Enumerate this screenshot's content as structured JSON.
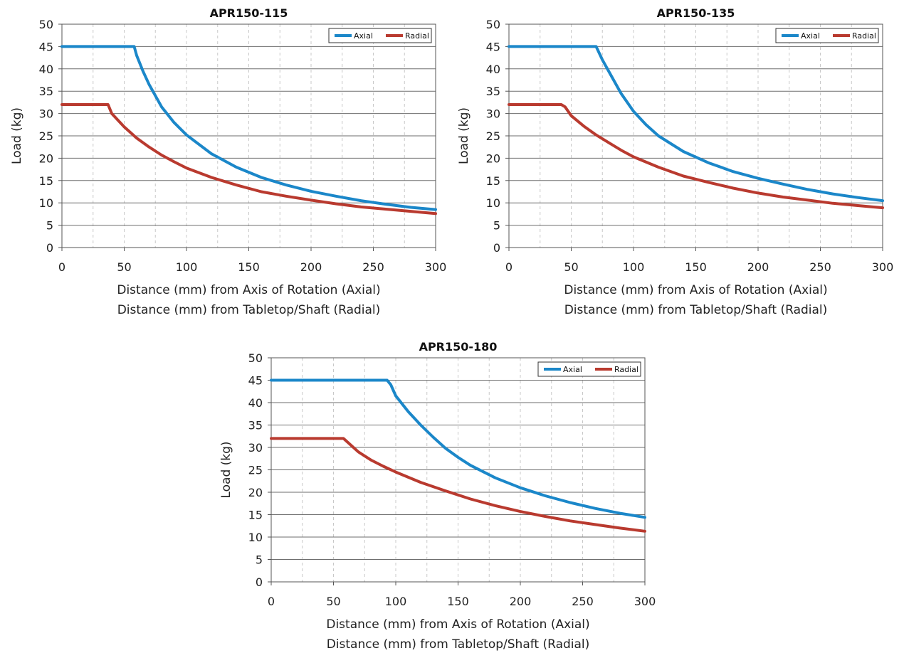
{
  "chart_data": [
    {
      "type": "line",
      "title": "APR150-115",
      "ylabel": "Load (kg)",
      "xlabel": [
        "Distance (mm) from Axis of Rotation (Axial)",
        "Distance (mm) from Tabletop/Shaft (Radial)"
      ],
      "xlim": [
        0,
        300
      ],
      "ylim": [
        0,
        50
      ],
      "xticks": [
        0,
        50,
        100,
        150,
        200,
        250,
        300
      ],
      "yticks": [
        0,
        5,
        10,
        15,
        20,
        25,
        30,
        35,
        40,
        45,
        50
      ],
      "grid": "horizontal",
      "legend": "top-right",
      "series": [
        {
          "name": "Axial",
          "color": "#1b87c9",
          "x": [
            0,
            55,
            58,
            60,
            65,
            70,
            80,
            90,
            100,
            120,
            140,
            160,
            180,
            200,
            220,
            240,
            260,
            280,
            300
          ],
          "y": [
            45,
            45,
            45,
            43,
            39.5,
            36.5,
            31.5,
            28,
            25.2,
            21,
            18,
            15.7,
            14,
            12.6,
            11.5,
            10.5,
            9.7,
            9,
            8.5
          ]
        },
        {
          "name": "Radial",
          "color": "#b93a2f",
          "x": [
            0,
            33,
            37,
            40,
            50,
            60,
            70,
            80,
            90,
            100,
            120,
            140,
            160,
            180,
            200,
            220,
            240,
            260,
            280,
            300
          ],
          "y": [
            32,
            32,
            32,
            30,
            27,
            24.5,
            22.5,
            20.7,
            19.2,
            17.8,
            15.7,
            14,
            12.5,
            11.5,
            10.6,
            9.8,
            9.1,
            8.6,
            8.1,
            7.6
          ]
        }
      ]
    },
    {
      "type": "line",
      "title": "APR150-135",
      "ylabel": "Load (kg)",
      "xlabel": [
        "Distance (mm) from Axis of Rotation (Axial)",
        "Distance (mm) from Tabletop/Shaft (Radial)"
      ],
      "xlim": [
        0,
        300
      ],
      "ylim": [
        0,
        50
      ],
      "xticks": [
        0,
        50,
        100,
        150,
        200,
        250,
        300
      ],
      "yticks": [
        0,
        5,
        10,
        15,
        20,
        25,
        30,
        35,
        40,
        45,
        50
      ],
      "grid": "horizontal",
      "legend": "top-right",
      "series": [
        {
          "name": "Axial",
          "color": "#1b87c9",
          "x": [
            0,
            70,
            75,
            80,
            90,
            100,
            110,
            120,
            140,
            160,
            180,
            200,
            220,
            240,
            260,
            280,
            300
          ],
          "y": [
            45,
            45,
            42,
            39.5,
            34.5,
            30.5,
            27.5,
            25,
            21.5,
            19,
            17,
            15.5,
            14.2,
            13,
            12,
            11.2,
            10.5
          ]
        },
        {
          "name": "Radial",
          "color": "#b93a2f",
          "x": [
            0,
            42,
            45,
            50,
            60,
            70,
            80,
            90,
            100,
            120,
            140,
            160,
            180,
            200,
            220,
            240,
            260,
            280,
            300
          ],
          "y": [
            32,
            32,
            31.5,
            29.5,
            27.2,
            25.2,
            23.5,
            21.8,
            20.3,
            18,
            16,
            14.6,
            13.3,
            12.2,
            11.3,
            10.6,
            9.9,
            9.4,
            8.9
          ]
        }
      ]
    },
    {
      "type": "line",
      "title": "APR150-180",
      "ylabel": "Load (kg)",
      "xlabel": [
        "Distance (mm) from Axis of Rotation (Axial)",
        "Distance (mm) from Tabletop/Shaft (Radial)"
      ],
      "xlim": [
        0,
        300
      ],
      "ylim": [
        0,
        50
      ],
      "xticks": [
        0,
        50,
        100,
        150,
        200,
        250,
        300
      ],
      "yticks": [
        0,
        5,
        10,
        15,
        20,
        25,
        30,
        35,
        40,
        45,
        50
      ],
      "grid": "horizontal",
      "legend": "top-right",
      "series": [
        {
          "name": "Axial",
          "color": "#1b87c9",
          "x": [
            0,
            93,
            96,
            100,
            110,
            120,
            130,
            140,
            150,
            160,
            180,
            200,
            220,
            240,
            260,
            280,
            300
          ],
          "y": [
            45,
            45,
            44,
            41.5,
            38,
            35,
            32.3,
            29.8,
            27.8,
            26,
            23.2,
            21,
            19.2,
            17.7,
            16.4,
            15.3,
            14.4
          ]
        },
        {
          "name": "Radial",
          "color": "#b93a2f",
          "x": [
            0,
            58,
            60,
            70,
            80,
            90,
            100,
            120,
            140,
            160,
            180,
            200,
            220,
            240,
            260,
            280,
            300
          ],
          "y": [
            32,
            32,
            31.5,
            29,
            27.2,
            25.8,
            24.5,
            22.2,
            20.3,
            18.5,
            17,
            15.7,
            14.6,
            13.6,
            12.8,
            12,
            11.3
          ]
        }
      ]
    }
  ]
}
